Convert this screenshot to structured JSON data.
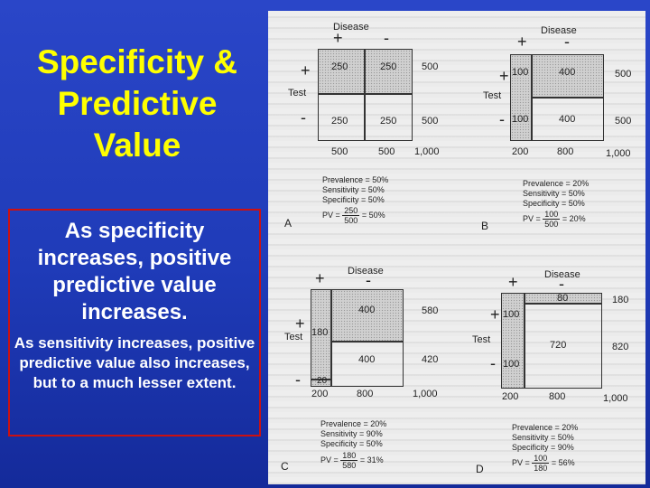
{
  "slide": {
    "title": "Specificity & Predictive Value",
    "main_text": "As specificity increases, positive predictive value increases.",
    "sub_text": "As sensitivity increases, positive predictive value also increases, but to a much lesser extent."
  },
  "figure": {
    "panels": [
      {
        "letter": "A",
        "disease_label": "Disease",
        "test_label": "Test",
        "col_plus": "+",
        "col_minus": "-",
        "row_plus": "+",
        "row_minus": "-",
        "cells": [
          "250",
          "250",
          "250",
          "250"
        ],
        "row_totals": [
          "500",
          "500"
        ],
        "col_totals": [
          "500",
          "500",
          "1,000"
        ],
        "prevalence": "Prevalence = 50%",
        "sensitivity": "Sensitivity = 50%",
        "specificity": "Specificity = 50%",
        "pv_label": "PV =",
        "pv_num": "250",
        "pv_den": "500",
        "pv_result": "= 50%"
      },
      {
        "letter": "B",
        "disease_label": "Disease",
        "test_label": "Test",
        "col_plus": "+",
        "col_minus": "-",
        "row_plus": "+",
        "row_minus": "-",
        "cells": [
          "100",
          "400",
          "100",
          "400"
        ],
        "row_totals": [
          "500",
          "500"
        ],
        "col_totals": [
          "200",
          "800",
          "1,000"
        ],
        "prevalence": "Prevalence = 20%",
        "sensitivity": "Sensitivity = 50%",
        "specificity": "Specificity = 50%",
        "pv_label": "PV =",
        "pv_num": "100",
        "pv_den": "500",
        "pv_result": "= 20%"
      },
      {
        "letter": "C",
        "disease_label": "Disease",
        "test_label": "Test",
        "col_plus": "+",
        "col_minus": "-",
        "row_plus": "+",
        "row_minus": "-",
        "cells": [
          "180",
          "400",
          "20",
          "400"
        ],
        "row_totals": [
          "580",
          "420"
        ],
        "col_totals": [
          "200",
          "800",
          "1,000"
        ],
        "prevalence": "Prevalence = 20%",
        "sensitivity": "Sensitivity = 90%",
        "specificity": "Specificity = 50%",
        "pv_label": "PV =",
        "pv_num": "180",
        "pv_den": "580",
        "pv_result": "= 31%"
      },
      {
        "letter": "D",
        "disease_label": "Disease",
        "test_label": "Test",
        "col_plus": "+",
        "col_minus": "-",
        "row_plus": "+",
        "row_minus": "-",
        "cells": [
          "100",
          "80",
          "100",
          "720"
        ],
        "row_totals": [
          "180",
          "820"
        ],
        "col_totals": [
          "200",
          "800",
          "1,000"
        ],
        "prevalence": "Prevalence = 20%",
        "sensitivity": "Sensitivity = 50%",
        "specificity": "Specificity = 90%",
        "pv_label": "PV =",
        "pv_num": "100",
        "pv_den": "180",
        "pv_result": "= 56%"
      }
    ]
  }
}
